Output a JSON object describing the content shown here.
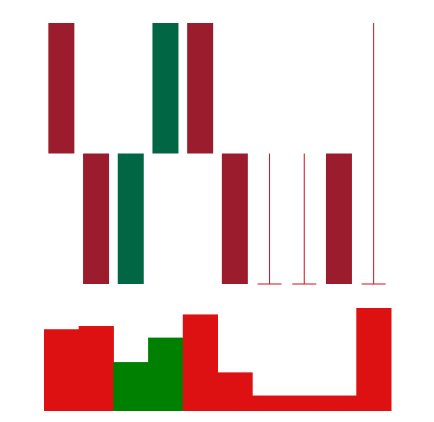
{
  "chart_data": {
    "type": "candlestick",
    "title": "",
    "xlabel": "",
    "ylabel": "",
    "grid": false,
    "legend": "none",
    "price_range": [
      0,
      100
    ],
    "volume_range": [
      0,
      16
    ],
    "candles": [
      {
        "open": 100,
        "high": 100,
        "low": 50,
        "close": 50,
        "volume": 12.7
      },
      {
        "open": 50,
        "high": 50,
        "low": 0,
        "close": 0,
        "volume": 13.2
      },
      {
        "open": 0,
        "high": 50,
        "low": 0,
        "close": 50,
        "volume": 7.6
      },
      {
        "open": 50,
        "high": 100,
        "low": 50,
        "close": 100,
        "volume": 11.4
      },
      {
        "open": 100,
        "high": 100,
        "low": 50,
        "close": 50,
        "volume": 15.0
      },
      {
        "open": 50,
        "high": 50,
        "low": 0,
        "close": 0,
        "volume": 6.0
      },
      {
        "open": 0,
        "high": 50,
        "low": 0,
        "close": 0,
        "volume": 2.4
      },
      {
        "open": 0,
        "high": 50,
        "low": 0,
        "close": 0,
        "volume": 2.4
      },
      {
        "open": 50,
        "high": 50,
        "low": 0,
        "close": 0,
        "volume": 2.4
      },
      {
        "open": 0,
        "high": 100,
        "low": 0,
        "close": 0,
        "volume": 16.0
      }
    ],
    "colors": {
      "up_body": "#006644",
      "down_body": "#9b1c2c",
      "wick": "#cc1122",
      "volume_up": "#008000",
      "volume_down": "#dd1111"
    }
  }
}
